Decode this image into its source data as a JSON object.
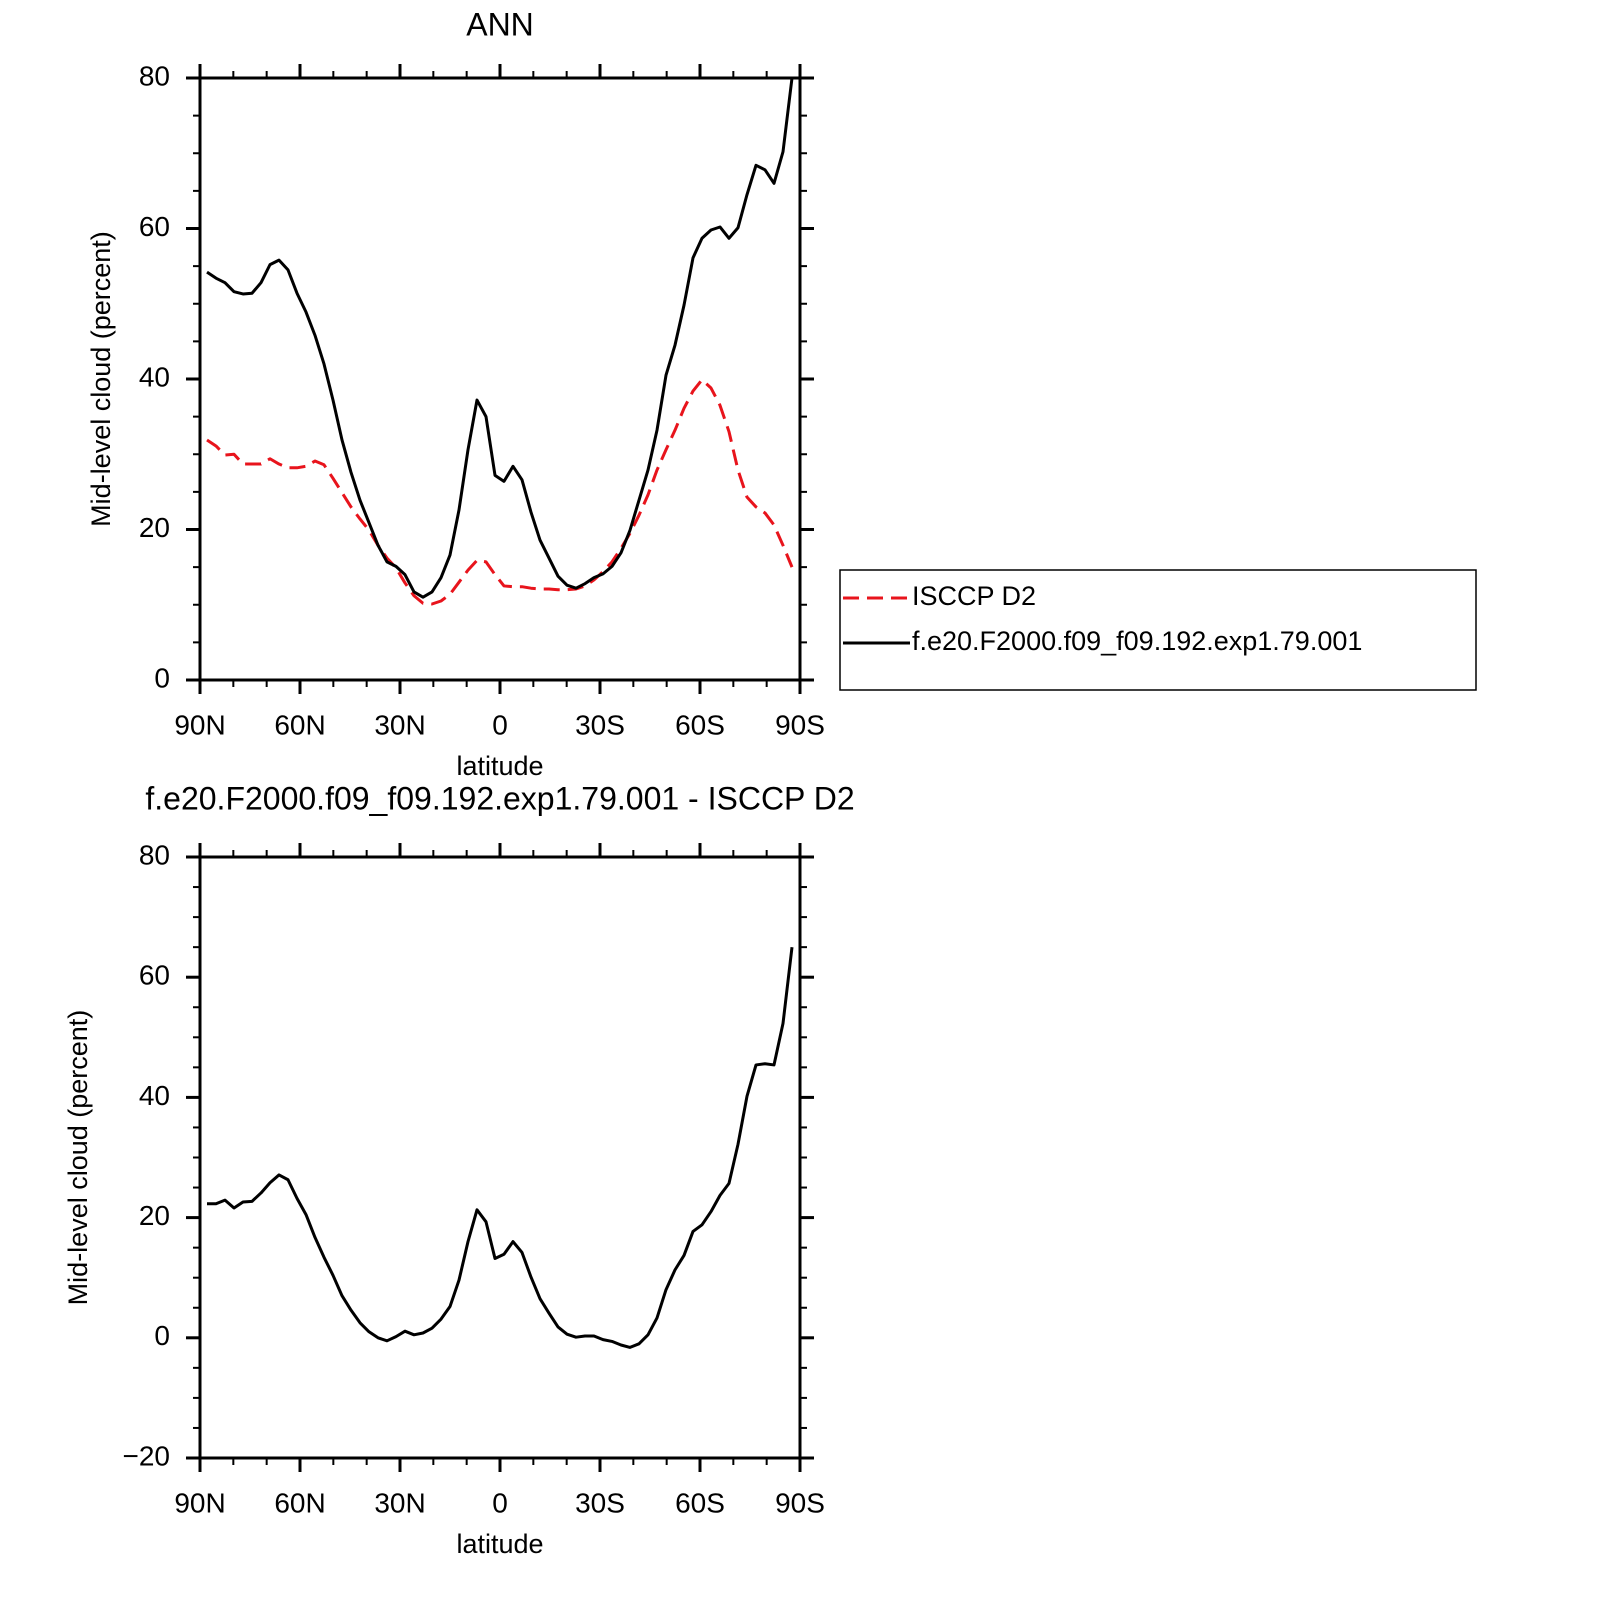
{
  "chart_data": [
    {
      "type": "line",
      "title": "ANN",
      "xlabel": "latitude",
      "ylabel": "Mid-level cloud (percent)",
      "x": [
        87.9,
        85.2,
        82.5,
        79.8,
        77.1,
        74.4,
        71.7,
        69,
        66.3,
        63.6,
        60.9,
        58.2,
        55.5,
        52.8,
        50.1,
        47.4,
        44.7,
        42,
        39.3,
        36.6,
        33.9,
        31.2,
        28.5,
        25.8,
        23.1,
        20.4,
        17.7,
        15,
        12.3,
        9.6,
        6.9,
        4.2,
        1.5,
        -1.2,
        -3.9,
        -6.6,
        -9.3,
        -12,
        -14.7,
        -17.4,
        -20.1,
        -22.8,
        -25.5,
        -28.2,
        -30.9,
        -33.6,
        -36.3,
        -39,
        -41.7,
        -44.4,
        -47.1,
        -49.8,
        -52.5,
        -55.2,
        -57.9,
        -60.6,
        -63.3,
        -66,
        -68.7,
        -71.4,
        -74.1,
        -76.8,
        -79.5,
        -82.2,
        -84.9,
        -87.6
      ],
      "xlim": [
        90,
        -90
      ],
      "xticks": [
        {
          "value": 90,
          "label": "90N"
        },
        {
          "value": 60,
          "label": "60N"
        },
        {
          "value": 30,
          "label": "30N"
        },
        0,
        {
          "value": -30,
          "label": "30S"
        },
        {
          "value": -60,
          "label": "60S"
        },
        {
          "value": -90,
          "label": "90S"
        }
      ],
      "ylim": [
        0,
        80
      ],
      "yticks": [
        0,
        20,
        40,
        60,
        80
      ],
      "legend": "right",
      "series": [
        {
          "name": "ISCCP D2",
          "color": "#e8141c",
          "line_style": "dashed",
          "values": [
            31.9,
            31.1,
            29.9,
            30,
            28.7,
            28.7,
            28.7,
            29.4,
            28.7,
            28.2,
            28.2,
            28.4,
            29.1,
            28.6,
            26.8,
            24.9,
            23,
            21.4,
            19.9,
            17.9,
            16.2,
            14.9,
            12.9,
            11.2,
            10.2,
            10.1,
            10.5,
            11.4,
            13,
            14.6,
            15.9,
            15.7,
            14,
            12.5,
            12.4,
            12.4,
            12.2,
            12.1,
            12.1,
            12,
            12,
            12.1,
            12.5,
            13.3,
            14.4,
            15.7,
            17.5,
            19.5,
            21.9,
            24.6,
            27.9,
            30.6,
            33.2,
            36.1,
            38.4,
            39.9,
            38.8,
            36.5,
            33,
            27.9,
            24.3,
            23,
            22.2,
            20.6,
            17.9,
            15
          ]
        },
        {
          "name": "f.e20.F2000.f09_f09.192.exp1.79.001",
          "color": "#000000",
          "line_style": "solid",
          "values": [
            54.2,
            53.4,
            52.8,
            51.6,
            51.3,
            51.4,
            52.8,
            55.2,
            55.8,
            54.5,
            51.4,
            48.9,
            45.8,
            42,
            37.2,
            31.9,
            27.6,
            23.9,
            20.9,
            17.9,
            15.7,
            15.1,
            14,
            11.7,
            11,
            11.7,
            13.6,
            16.6,
            22.6,
            30.6,
            37.2,
            35,
            27.2,
            26.4,
            28.4,
            26.6,
            22.3,
            18.6,
            16.2,
            13.8,
            12.6,
            12.2,
            12.8,
            13.6,
            14.1,
            15.1,
            16.9,
            19.9,
            23.9,
            27.9,
            33.2,
            40.5,
            44.5,
            49.8,
            56.1,
            58.7,
            59.8,
            60.2,
            58.7,
            60.1,
            64.5,
            68.4,
            67.8,
            66,
            70.2,
            80
          ]
        }
      ]
    },
    {
      "type": "line",
      "title": "f.e20.F2000.f09_f09.192.exp1.79.001 - ISCCP D2",
      "xlabel": "latitude",
      "ylabel": "Mid-level cloud (percent)",
      "x": [
        87.9,
        85.2,
        82.5,
        79.8,
        77.1,
        74.4,
        71.7,
        69,
        66.3,
        63.6,
        60.9,
        58.2,
        55.5,
        52.8,
        50.1,
        47.4,
        44.7,
        42,
        39.3,
        36.6,
        33.9,
        31.2,
        28.5,
        25.8,
        23.1,
        20.4,
        17.7,
        15,
        12.3,
        9.6,
        6.9,
        4.2,
        1.5,
        -1.2,
        -3.9,
        -6.6,
        -9.3,
        -12,
        -14.7,
        -17.4,
        -20.1,
        -22.8,
        -25.5,
        -28.2,
        -30.9,
        -33.6,
        -36.3,
        -39,
        -41.7,
        -44.4,
        -47.1,
        -49.8,
        -52.5,
        -55.2,
        -57.9,
        -60.6,
        -63.3,
        -66,
        -68.7,
        -71.4,
        -74.1,
        -76.8,
        -79.5,
        -82.2,
        -84.9,
        -87.6
      ],
      "xlim": [
        90,
        -90
      ],
      "xticks": [
        {
          "value": 90,
          "label": "90N"
        },
        {
          "value": 60,
          "label": "60N"
        },
        {
          "value": 30,
          "label": "30N"
        },
        0,
        {
          "value": -30,
          "label": "30S"
        },
        {
          "value": -60,
          "label": "60S"
        },
        {
          "value": -90,
          "label": "90S"
        }
      ],
      "ylim": [
        -20,
        80
      ],
      "yticks": [
        {
          "value": -20,
          "label": "−20"
        },
        0,
        20,
        40,
        60,
        80
      ],
      "series": [
        {
          "color": "#000000",
          "line_style": "solid",
          "values": [
            22.3,
            22.3,
            22.9,
            21.6,
            22.6,
            22.7,
            24.1,
            25.8,
            27.1,
            26.3,
            23.2,
            20.5,
            16.7,
            13.4,
            10.4,
            7,
            4.6,
            2.5,
            1,
            0,
            -0.5,
            0.2,
            1.1,
            0.5,
            0.8,
            1.6,
            3.1,
            5.2,
            9.6,
            16,
            21.3,
            19.3,
            13.2,
            13.9,
            16,
            14.2,
            10.1,
            6.5,
            4.1,
            1.8,
            0.6,
            0.1,
            0.3,
            0.3,
            -0.3,
            -0.6,
            -1.2,
            -1.6,
            -1,
            0.5,
            3.3,
            8,
            11.3,
            13.7,
            17.7,
            18.8,
            21,
            23.7,
            25.7,
            32.2,
            40.2,
            45.4,
            45.6,
            45.4,
            52.3,
            65
          ]
        }
      ]
    }
  ]
}
